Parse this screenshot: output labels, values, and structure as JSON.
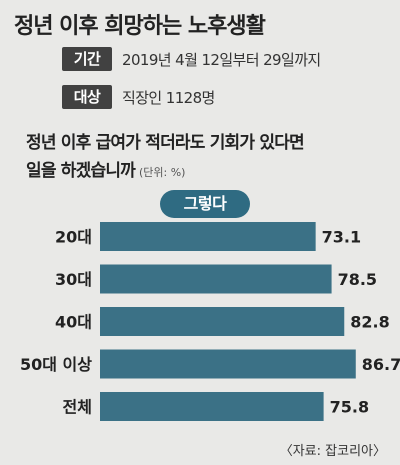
{
  "title": "정년 이후 희망하는 노후생활",
  "info": [
    {
      "tag": "기간",
      "text": "2019년 4월 12일부터 29일까지"
    },
    {
      "tag": "대상",
      "text": "직장인 1128명"
    }
  ],
  "question_line1": "정년 이후 급여가 적더라도 기회가 있다면",
  "question_line2": "일을 하겠습니까",
  "unit": "(단위: %)",
  "source": "〈자료: 잡코리아〉",
  "colors": {
    "bar": "#3b7186",
    "legend": "#2f6b82",
    "background": "#e9e9e7"
  },
  "chart_data": {
    "type": "bar",
    "orientation": "horizontal",
    "categories": [
      "20대",
      "30대",
      "40대",
      "50대 이상",
      "전체"
    ],
    "series": [
      {
        "name": "그렇다",
        "values": [
          73.1,
          78.5,
          82.8,
          86.7,
          75.8
        ]
      }
    ],
    "xlim": [
      0,
      100
    ],
    "grid": false,
    "legend": "top-center"
  }
}
